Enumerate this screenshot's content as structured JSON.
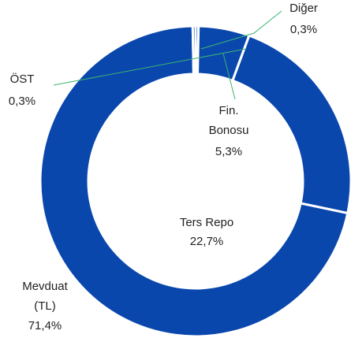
{
  "chart_data": {
    "type": "donut",
    "categories": [
      "Diğer",
      "Fin. Bonosu",
      "Ters Repo",
      "Mevduat (TL)",
      "ÖST"
    ],
    "values": [
      0.3,
      5.3,
      22.7,
      71.4,
      0.3
    ],
    "value_labels": [
      "0,3%",
      "5,3%",
      "22,7%",
      "71,4%",
      "0,3%"
    ],
    "color": "#0a47ad"
  }
}
